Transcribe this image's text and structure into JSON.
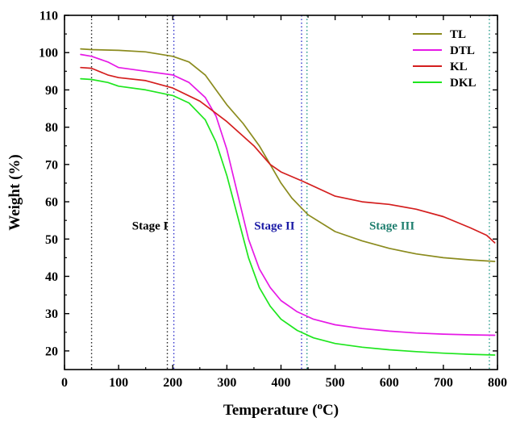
{
  "chart_data": {
    "type": "line",
    "title": "",
    "xlabel_main": "Temperature (",
    "xlabel_sup": "o",
    "xlabel_end": "C)",
    "ylabel": "Weight (%)",
    "xlim": [
      0,
      800
    ],
    "ylim": [
      15,
      110
    ],
    "xticks": [
      0,
      100,
      200,
      300,
      400,
      500,
      600,
      700,
      800
    ],
    "yticks": [
      20,
      30,
      40,
      50,
      60,
      70,
      80,
      90,
      100,
      110
    ],
    "grid": false,
    "legend_position": "top-right",
    "series": [
      {
        "name": "TL",
        "color": "#8b8b1e",
        "x": [
          30,
          50,
          100,
          150,
          200,
          230,
          260,
          280,
          300,
          330,
          360,
          380,
          400,
          420,
          450,
          500,
          550,
          600,
          650,
          700,
          750,
          795
        ],
        "y": [
          101,
          100.8,
          100.6,
          100.2,
          99,
          97.5,
          94,
          90,
          86,
          81,
          75,
          70,
          65,
          61,
          56.5,
          52,
          49.5,
          47.5,
          46,
          45,
          44.4,
          44
        ]
      },
      {
        "name": "DTL",
        "color": "#e619e6",
        "x": [
          30,
          50,
          80,
          100,
          150,
          200,
          230,
          260,
          280,
          300,
          320,
          340,
          360,
          380,
          400,
          430,
          460,
          500,
          550,
          600,
          650,
          700,
          750,
          795
        ],
        "y": [
          99.5,
          99,
          97.5,
          96,
          95,
          94,
          92,
          88,
          83,
          74,
          62,
          50,
          42,
          37,
          33.5,
          30.5,
          28.5,
          27,
          26,
          25.3,
          24.8,
          24.5,
          24.3,
          24.2
        ]
      },
      {
        "name": "KL",
        "color": "#d41e1e",
        "x": [
          30,
          50,
          80,
          100,
          150,
          200,
          250,
          300,
          350,
          380,
          400,
          440,
          500,
          550,
          600,
          650,
          700,
          750,
          780,
          795
        ],
        "y": [
          96,
          95.8,
          94,
          93.3,
          92.5,
          90.5,
          87,
          81.5,
          75,
          70,
          68,
          65.5,
          61.5,
          60,
          59.3,
          58,
          56,
          53,
          51,
          49
        ]
      },
      {
        "name": "DKL",
        "color": "#1ee61e",
        "x": [
          30,
          50,
          80,
          100,
          150,
          200,
          230,
          260,
          280,
          300,
          320,
          340,
          360,
          380,
          400,
          430,
          460,
          500,
          550,
          600,
          650,
          700,
          750,
          795
        ],
        "y": [
          93,
          92.8,
          92,
          91,
          90,
          88.5,
          86.5,
          82,
          76,
          67,
          56,
          45,
          37,
          32,
          28.5,
          25.5,
          23.5,
          22,
          21,
          20.3,
          19.8,
          19.4,
          19.1,
          18.9
        ]
      }
    ],
    "vertical_lines": [
      {
        "x": 50,
        "color": "#222222"
      },
      {
        "x": 190,
        "color": "#222222"
      },
      {
        "x": 202,
        "color": "#3333cc"
      },
      {
        "x": 438,
        "color": "#3333cc"
      },
      {
        "x": 448,
        "color": "#229988"
      },
      {
        "x": 785,
        "color": "#229988"
      }
    ],
    "annotations": [
      {
        "text": "Stage I",
        "x": 158,
        "y": 52.5,
        "color": "#000000"
      },
      {
        "text": "Stage II",
        "x": 388,
        "y": 52.5,
        "color": "#1a1aa6"
      },
      {
        "text": "Stage III",
        "x": 605,
        "y": 52.5,
        "color": "#1f7f6f"
      }
    ]
  }
}
